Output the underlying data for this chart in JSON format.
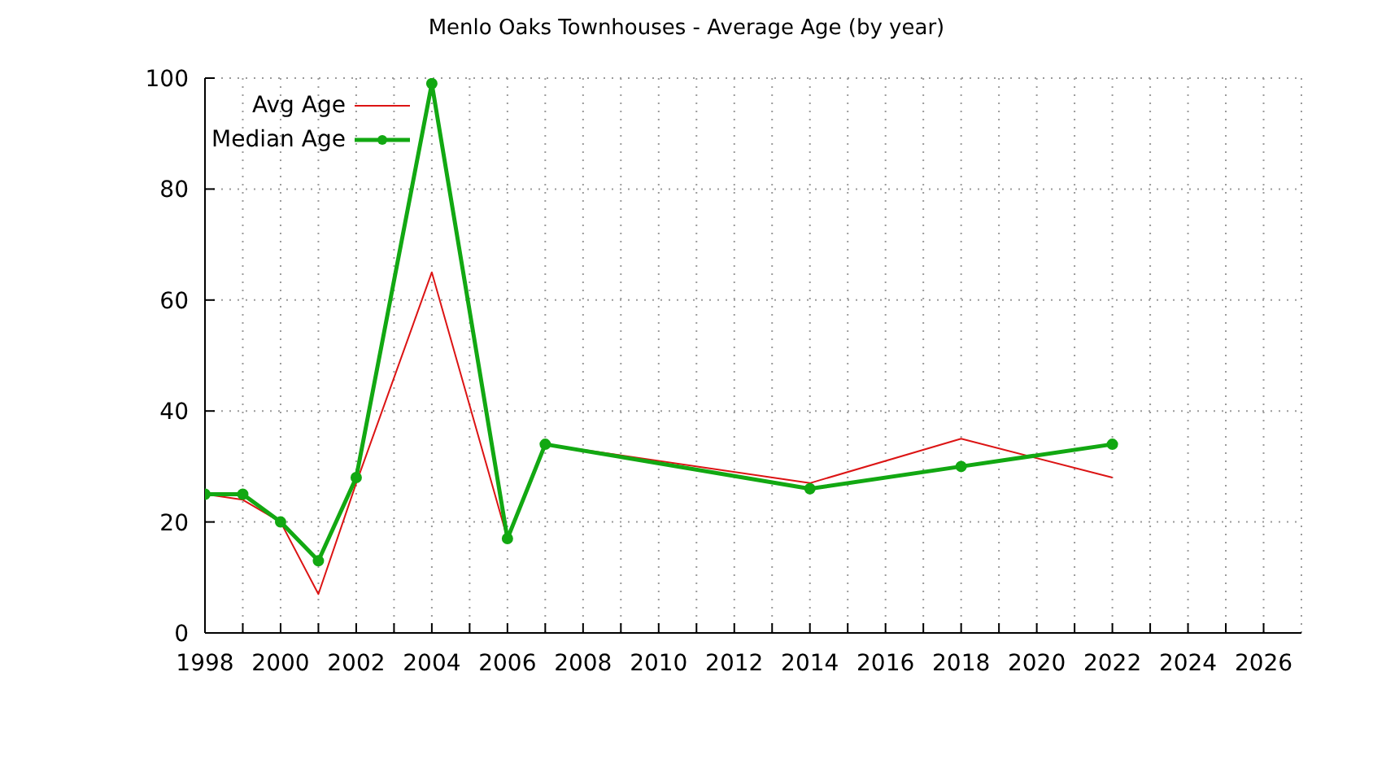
{
  "chart_data": {
    "type": "line",
    "title": "Menlo Oaks Townhouses - Average Age (by year)",
    "x": [
      1998,
      1999,
      2000,
      2001,
      2002,
      2004,
      2006,
      2007,
      2014,
      2018,
      2022
    ],
    "series": [
      {
        "name": "Avg Age",
        "color": "#dc1414",
        "marker": "none",
        "values": [
          25,
          24,
          20,
          7,
          27,
          65,
          17,
          34,
          27,
          35,
          28
        ]
      },
      {
        "name": "Median Age",
        "color": "#12a812",
        "marker": "circle",
        "values": [
          25,
          25,
          20,
          13,
          28,
          99,
          17,
          34,
          26,
          30,
          34
        ]
      }
    ],
    "xlim": [
      1998,
      2027
    ],
    "xticks": [
      1998,
      {
        "value": 1999,
        "label": null
      },
      2000,
      {
        "value": 2001,
        "label": null
      },
      2002,
      {
        "value": 2003,
        "label": null
      },
      2004,
      {
        "value": 2005,
        "label": null
      },
      2006,
      {
        "value": 2007,
        "label": null
      },
      2008,
      {
        "value": 2009,
        "label": null
      },
      2010,
      {
        "value": 2011,
        "label": null
      },
      2012,
      {
        "value": 2013,
        "label": null
      },
      2014,
      {
        "value": 2015,
        "label": null
      },
      2016,
      {
        "value": 2017,
        "label": null
      },
      2018,
      {
        "value": 2019,
        "label": null
      },
      2020,
      {
        "value": 2021,
        "label": null
      },
      2022,
      {
        "value": 2023,
        "label": null
      },
      2024,
      {
        "value": 2025,
        "label": null
      },
      2026
    ],
    "ylim": [
      0,
      100
    ],
    "yticks": [
      0,
      20,
      40,
      60,
      80,
      100
    ],
    "grid": true,
    "legend": "top left"
  }
}
